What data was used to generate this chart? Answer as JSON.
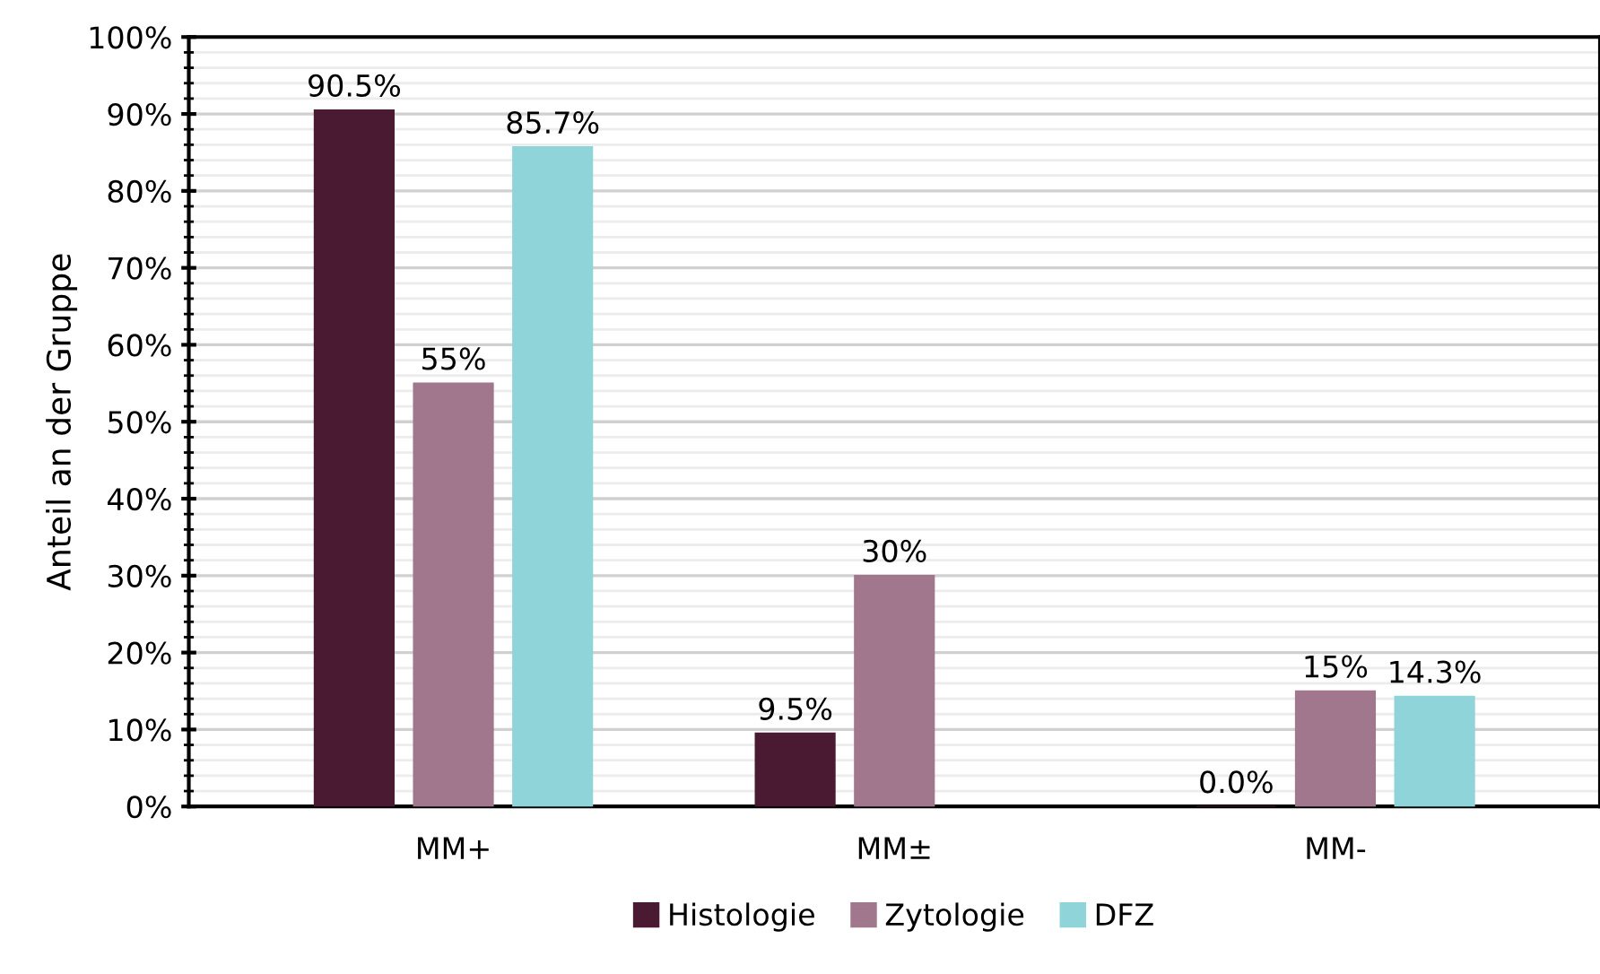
{
  "chart_data": {
    "type": "bar",
    "ylabel": "Anteil an der Gruppe",
    "categories": [
      "MM+",
      "MM±",
      "MM-"
    ],
    "series": [
      {
        "name": "Histologie",
        "color": "#4a1a33",
        "values": [
          90.5,
          9.5,
          0
        ],
        "value_labels": [
          "90.5%",
          "9.5%",
          "0.0%"
        ]
      },
      {
        "name": "Zytologie",
        "color": "#a0778c",
        "values": [
          55,
          30,
          15
        ],
        "value_labels": [
          "55%",
          "30%",
          "15%"
        ]
      },
      {
        "name": "DFZ",
        "color": "#8fd4d8",
        "values": [
          85.7,
          null,
          14.3
        ],
        "value_labels": [
          "85.7%",
          null,
          "14.3%"
        ]
      }
    ],
    "ylim": [
      0,
      100
    ],
    "yticks": [
      {
        "value": 0,
        "label": "0%"
      },
      {
        "value": 10,
        "label": "10%"
      },
      {
        "value": 20,
        "label": "20%"
      },
      {
        "value": 30,
        "label": "30%"
      },
      {
        "value": 40,
        "label": "40%"
      },
      {
        "value": 50,
        "label": "50%"
      },
      {
        "value": 60,
        "label": "60%"
      },
      {
        "value": 70,
        "label": "70%"
      },
      {
        "value": 80,
        "label": "80%"
      },
      {
        "value": 90,
        "label": "90%"
      },
      {
        "value": 100,
        "label": "100%"
      }
    ],
    "grid": "y",
    "legend": "bottom"
  }
}
